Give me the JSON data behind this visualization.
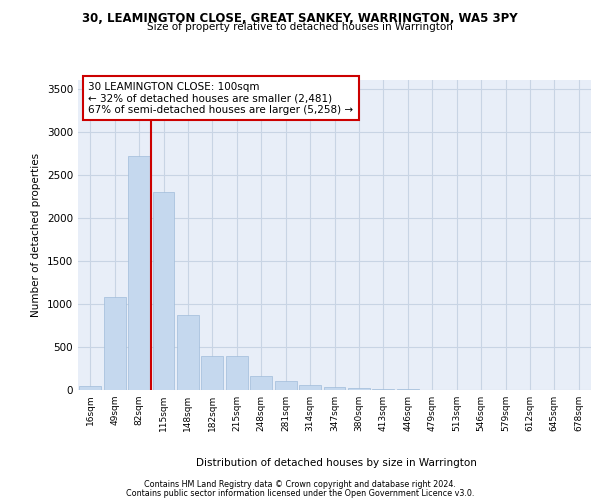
{
  "title_line1": "30, LEAMINGTON CLOSE, GREAT SANKEY, WARRINGTON, WA5 3PY",
  "title_line2": "Size of property relative to detached houses in Warrington",
  "xlabel": "Distribution of detached houses by size in Warrington",
  "ylabel": "Number of detached properties",
  "footer_line1": "Contains HM Land Registry data © Crown copyright and database right 2024.",
  "footer_line2": "Contains public sector information licensed under the Open Government Licence v3.0.",
  "categories": [
    "16sqm",
    "49sqm",
    "82sqm",
    "115sqm",
    "148sqm",
    "182sqm",
    "215sqm",
    "248sqm",
    "281sqm",
    "314sqm",
    "347sqm",
    "380sqm",
    "413sqm",
    "446sqm",
    "479sqm",
    "513sqm",
    "546sqm",
    "579sqm",
    "612sqm",
    "645sqm",
    "678sqm"
  ],
  "values": [
    50,
    1080,
    2720,
    2300,
    870,
    395,
    390,
    160,
    105,
    55,
    40,
    25,
    15,
    8,
    5,
    3,
    2,
    2,
    1,
    1,
    1
  ],
  "bar_color": "#c5d8ee",
  "bar_edge_color": "#a0bcda",
  "grid_color": "#c8d4e4",
  "background_color": "#e8eef8",
  "vline_color": "#cc0000",
  "vline_x": 2.5,
  "annotation_text": "30 LEAMINGTON CLOSE: 100sqm\n← 32% of detached houses are smaller (2,481)\n67% of semi-detached houses are larger (5,258) →",
  "annotation_box_facecolor": "#ffffff",
  "annotation_box_edgecolor": "#cc0000",
  "ylim_max": 3600,
  "yticks": [
    0,
    500,
    1000,
    1500,
    2000,
    2500,
    3000,
    3500
  ]
}
